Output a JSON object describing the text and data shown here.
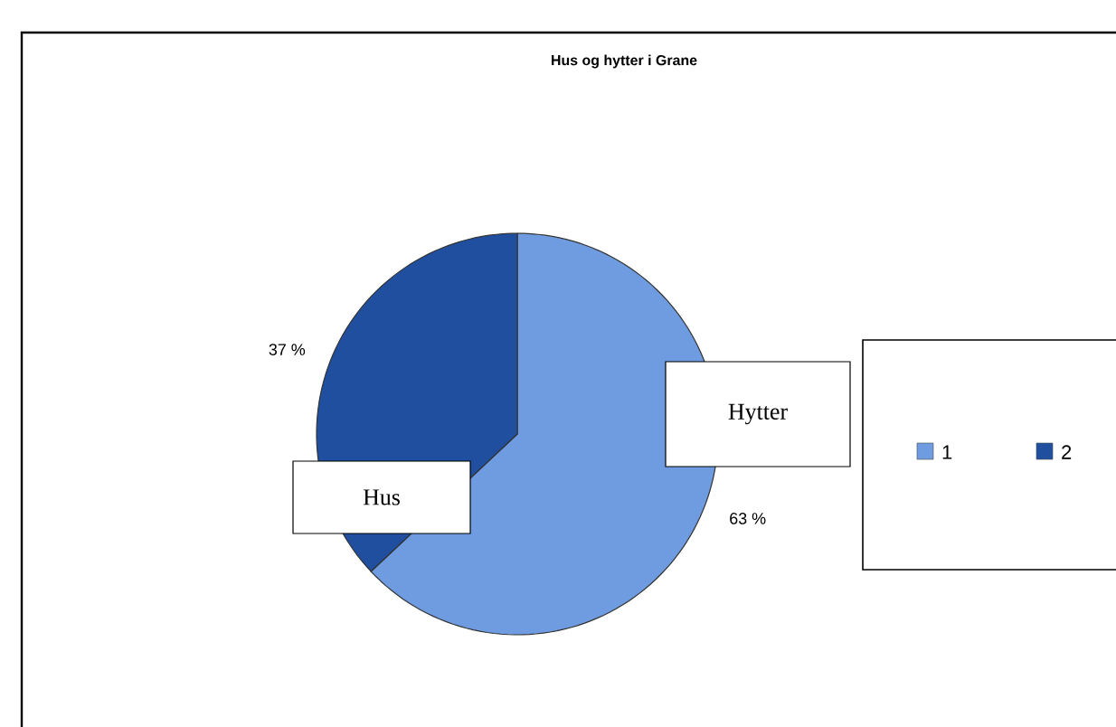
{
  "chart_data": {
    "type": "pie",
    "title": "Hus og hytter i Grane",
    "categories": [
      "1",
      "2"
    ],
    "values": [
      63,
      37
    ],
    "colors": [
      "#6f9be0",
      "#1f4f9e"
    ],
    "value_labels": [
      "63 %",
      "37 %"
    ],
    "annotations": [
      "Hytter",
      "Hus"
    ],
    "legend": "right"
  }
}
